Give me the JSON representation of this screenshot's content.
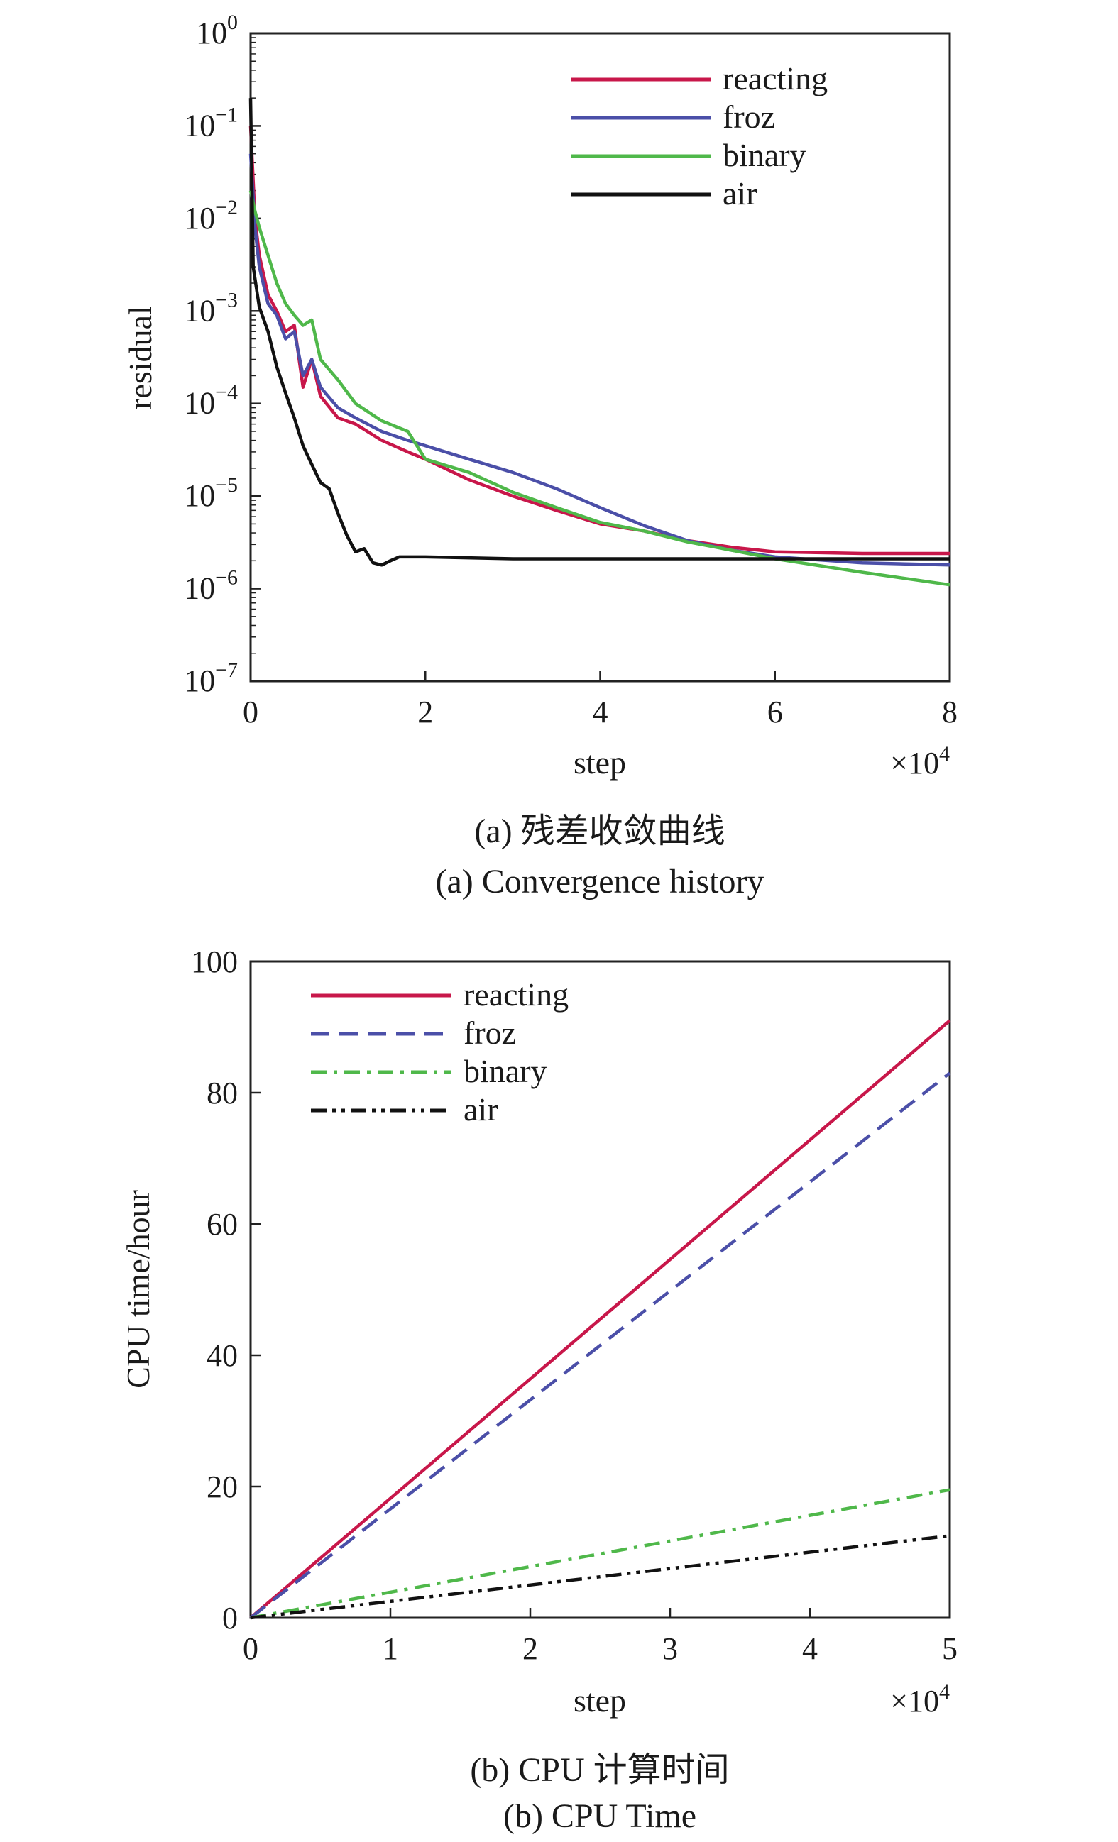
{
  "chart_data": [
    {
      "type": "line",
      "xlabel": "step",
      "ylabel": "residual",
      "x_multiplier": "×10^4",
      "xlim": [
        0,
        8
      ],
      "ylim": [
        1e-07,
        1
      ],
      "y_scale": "log",
      "x_ticks": [
        "0",
        "2",
        "4",
        "6",
        "8"
      ],
      "y_ticks": [
        {
          "base": "10",
          "exp": "0"
        },
        {
          "base": "10",
          "exp": "−1"
        },
        {
          "base": "10",
          "exp": "−2"
        },
        {
          "base": "10",
          "exp": "−3"
        },
        {
          "base": "10",
          "exp": "−4"
        },
        {
          "base": "10",
          "exp": "−5"
        },
        {
          "base": "10",
          "exp": "−6"
        },
        {
          "base": "10",
          "exp": "−7"
        }
      ],
      "legend_position": "top-right",
      "caption_cn": "(a) 残差收敛曲线",
      "caption_en": "(a) Convergence history",
      "series": [
        {
          "name": "reacting",
          "color": "#c8174a",
          "dash": "solid",
          "x": [
            0,
            0.05,
            0.1,
            0.2,
            0.3,
            0.4,
            0.5,
            0.6,
            0.7,
            0.8,
            1.0,
            1.2,
            1.5,
            1.8,
            2.0,
            2.5,
            3.0,
            3.5,
            4.0,
            4.5,
            5.0,
            5.5,
            6.0,
            7.0,
            8.0
          ],
          "y": [
            0.1,
            0.01,
            0.004,
            0.0015,
            0.001,
            0.0006,
            0.0007,
            0.00015,
            0.0003,
            0.00012,
            7e-05,
            6e-05,
            4e-05,
            3e-05,
            2.5e-05,
            1.5e-05,
            1e-05,
            7e-06,
            5e-06,
            4.2e-06,
            3.3e-06,
            2.8e-06,
            2.5e-06,
            2.4e-06,
            2.4e-06
          ]
        },
        {
          "name": "froz",
          "color": "#4b4fa8",
          "dash": "solid",
          "x": [
            0,
            0.05,
            0.1,
            0.2,
            0.3,
            0.4,
            0.5,
            0.6,
            0.7,
            0.8,
            1.0,
            1.2,
            1.5,
            1.8,
            2.0,
            2.5,
            3.0,
            3.5,
            4.0,
            4.5,
            5.0,
            5.5,
            6.0,
            7.0,
            8.0
          ],
          "y": [
            0.05,
            0.008,
            0.003,
            0.0012,
            0.0009,
            0.0005,
            0.0006,
            0.0002,
            0.0003,
            0.00015,
            9e-05,
            7e-05,
            5e-05,
            4e-05,
            3.5e-05,
            2.5e-05,
            1.8e-05,
            1.2e-05,
            7.5e-06,
            4.8e-06,
            3.3e-06,
            2.6e-06,
            2.2e-06,
            1.9e-06,
            1.8e-06
          ]
        },
        {
          "name": "binary",
          "color": "#4fb84a",
          "dash": "solid",
          "x": [
            0,
            0.05,
            0.1,
            0.2,
            0.3,
            0.4,
            0.5,
            0.6,
            0.7,
            0.8,
            1.0,
            1.2,
            1.5,
            1.8,
            2.0,
            2.5,
            3.0,
            3.5,
            4.0,
            4.5,
            5.0,
            5.5,
            6.0,
            7.0,
            8.0
          ],
          "y": [
            0.02,
            0.012,
            0.008,
            0.004,
            0.002,
            0.0012,
            0.0009,
            0.0007,
            0.0008,
            0.0003,
            0.00018,
            0.0001,
            6.5e-05,
            5e-05,
            2.5e-05,
            1.8e-05,
            1.1e-05,
            7.5e-06,
            5.2e-06,
            4.2e-06,
            3.2e-06,
            2.6e-06,
            2.1e-06,
            1.5e-06,
            1.1e-06
          ]
        },
        {
          "name": "air",
          "color": "#111111",
          "dash": "solid",
          "x": [
            0,
            0.03,
            0.1,
            0.2,
            0.3,
            0.4,
            0.5,
            0.6,
            0.7,
            0.8,
            0.9,
            1.0,
            1.1,
            1.2,
            1.3,
            1.4,
            1.5,
            1.6,
            1.7,
            2.0,
            3.0,
            4.0,
            5.0,
            6.0,
            7.0,
            8.0
          ],
          "y": [
            0.2,
            0.003,
            0.0011,
            0.0006,
            0.00025,
            0.00013,
            7e-05,
            3.5e-05,
            2.2e-05,
            1.4e-05,
            1.2e-05,
            6.5e-06,
            3.8e-06,
            2.5e-06,
            2.7e-06,
            1.9e-06,
            1.8e-06,
            2e-06,
            2.2e-06,
            2.2e-06,
            2.1e-06,
            2.1e-06,
            2.1e-06,
            2.1e-06,
            2.1e-06,
            2.1e-06
          ]
        }
      ]
    },
    {
      "type": "line",
      "xlabel": "step",
      "ylabel": "CPU time/hour",
      "x_multiplier": "×10^4",
      "xlim": [
        0,
        5
      ],
      "ylim": [
        0,
        100
      ],
      "x_ticks": [
        "0",
        "1",
        "2",
        "3",
        "4",
        "5"
      ],
      "y_ticks": [
        "0",
        "20",
        "40",
        "60",
        "80",
        "100"
      ],
      "legend_position": "top-left",
      "caption_cn": "(b) CPU 计算时间",
      "caption_en": "(b) CPU Time",
      "series": [
        {
          "name": "reacting",
          "color": "#c8174a",
          "dash": "solid",
          "x": [
            0,
            5
          ],
          "y": [
            0,
            91
          ]
        },
        {
          "name": "froz",
          "color": "#4b4fa8",
          "dash": "dashed",
          "x": [
            0,
            5
          ],
          "y": [
            0,
            83
          ]
        },
        {
          "name": "binary",
          "color": "#4fb84a",
          "dash": "dashdot",
          "x": [
            0,
            5
          ],
          "y": [
            0,
            19.5
          ]
        },
        {
          "name": "air",
          "color": "#111111",
          "dash": "dashdotdot",
          "x": [
            0,
            5
          ],
          "y": [
            0,
            12.5
          ]
        }
      ]
    }
  ]
}
